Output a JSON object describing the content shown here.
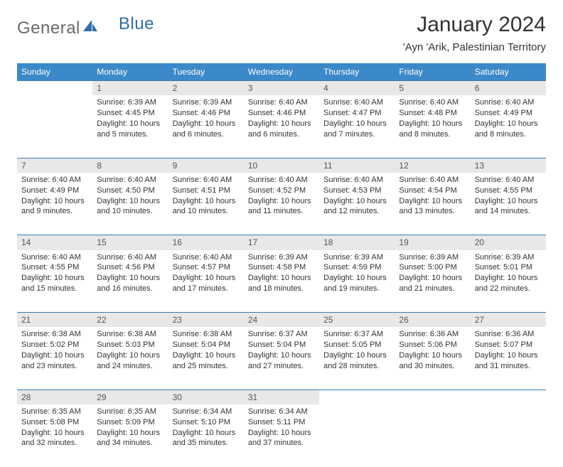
{
  "brand": {
    "part1": "General",
    "part2": "Blue"
  },
  "title": "January 2024",
  "subtitle": "'Ayn 'Arik, Palestinian Territory",
  "colors": {
    "header_bg": "#3b89c9",
    "header_text": "#ffffff",
    "daynum_bg": "#e8e8e8",
    "rule": "#3b7db2",
    "logo_gray": "#6a6a6a",
    "logo_blue": "#2f6fa6",
    "text": "#333333"
  },
  "weekdays": [
    "Sunday",
    "Monday",
    "Tuesday",
    "Wednesday",
    "Thursday",
    "Friday",
    "Saturday"
  ],
  "first_weekday_index": 1,
  "days": [
    {
      "n": 1,
      "sunrise": "6:39 AM",
      "sunset": "4:45 PM",
      "daylight": "10 hours and 5 minutes."
    },
    {
      "n": 2,
      "sunrise": "6:39 AM",
      "sunset": "4:46 PM",
      "daylight": "10 hours and 6 minutes."
    },
    {
      "n": 3,
      "sunrise": "6:40 AM",
      "sunset": "4:46 PM",
      "daylight": "10 hours and 6 minutes."
    },
    {
      "n": 4,
      "sunrise": "6:40 AM",
      "sunset": "4:47 PM",
      "daylight": "10 hours and 7 minutes."
    },
    {
      "n": 5,
      "sunrise": "6:40 AM",
      "sunset": "4:48 PM",
      "daylight": "10 hours and 8 minutes."
    },
    {
      "n": 6,
      "sunrise": "6:40 AM",
      "sunset": "4:49 PM",
      "daylight": "10 hours and 8 minutes."
    },
    {
      "n": 7,
      "sunrise": "6:40 AM",
      "sunset": "4:49 PM",
      "daylight": "10 hours and 9 minutes."
    },
    {
      "n": 8,
      "sunrise": "6:40 AM",
      "sunset": "4:50 PM",
      "daylight": "10 hours and 10 minutes."
    },
    {
      "n": 9,
      "sunrise": "6:40 AM",
      "sunset": "4:51 PM",
      "daylight": "10 hours and 10 minutes."
    },
    {
      "n": 10,
      "sunrise": "6:40 AM",
      "sunset": "4:52 PM",
      "daylight": "10 hours and 11 minutes."
    },
    {
      "n": 11,
      "sunrise": "6:40 AM",
      "sunset": "4:53 PM",
      "daylight": "10 hours and 12 minutes."
    },
    {
      "n": 12,
      "sunrise": "6:40 AM",
      "sunset": "4:54 PM",
      "daylight": "10 hours and 13 minutes."
    },
    {
      "n": 13,
      "sunrise": "6:40 AM",
      "sunset": "4:55 PM",
      "daylight": "10 hours and 14 minutes."
    },
    {
      "n": 14,
      "sunrise": "6:40 AM",
      "sunset": "4:55 PM",
      "daylight": "10 hours and 15 minutes."
    },
    {
      "n": 15,
      "sunrise": "6:40 AM",
      "sunset": "4:56 PM",
      "daylight": "10 hours and 16 minutes."
    },
    {
      "n": 16,
      "sunrise": "6:40 AM",
      "sunset": "4:57 PM",
      "daylight": "10 hours and 17 minutes."
    },
    {
      "n": 17,
      "sunrise": "6:39 AM",
      "sunset": "4:58 PM",
      "daylight": "10 hours and 18 minutes."
    },
    {
      "n": 18,
      "sunrise": "6:39 AM",
      "sunset": "4:59 PM",
      "daylight": "10 hours and 19 minutes."
    },
    {
      "n": 19,
      "sunrise": "6:39 AM",
      "sunset": "5:00 PM",
      "daylight": "10 hours and 21 minutes."
    },
    {
      "n": 20,
      "sunrise": "6:39 AM",
      "sunset": "5:01 PM",
      "daylight": "10 hours and 22 minutes."
    },
    {
      "n": 21,
      "sunrise": "6:38 AM",
      "sunset": "5:02 PM",
      "daylight": "10 hours and 23 minutes."
    },
    {
      "n": 22,
      "sunrise": "6:38 AM",
      "sunset": "5:03 PM",
      "daylight": "10 hours and 24 minutes."
    },
    {
      "n": 23,
      "sunrise": "6:38 AM",
      "sunset": "5:04 PM",
      "daylight": "10 hours and 25 minutes."
    },
    {
      "n": 24,
      "sunrise": "6:37 AM",
      "sunset": "5:04 PM",
      "daylight": "10 hours and 27 minutes."
    },
    {
      "n": 25,
      "sunrise": "6:37 AM",
      "sunset": "5:05 PM",
      "daylight": "10 hours and 28 minutes."
    },
    {
      "n": 26,
      "sunrise": "6:36 AM",
      "sunset": "5:06 PM",
      "daylight": "10 hours and 30 minutes."
    },
    {
      "n": 27,
      "sunrise": "6:36 AM",
      "sunset": "5:07 PM",
      "daylight": "10 hours and 31 minutes."
    },
    {
      "n": 28,
      "sunrise": "6:35 AM",
      "sunset": "5:08 PM",
      "daylight": "10 hours and 32 minutes."
    },
    {
      "n": 29,
      "sunrise": "6:35 AM",
      "sunset": "5:09 PM",
      "daylight": "10 hours and 34 minutes."
    },
    {
      "n": 30,
      "sunrise": "6:34 AM",
      "sunset": "5:10 PM",
      "daylight": "10 hours and 35 minutes."
    },
    {
      "n": 31,
      "sunrise": "6:34 AM",
      "sunset": "5:11 PM",
      "daylight": "10 hours and 37 minutes."
    }
  ],
  "labels": {
    "sunrise": "Sunrise:",
    "sunset": "Sunset:",
    "daylight": "Daylight:"
  }
}
